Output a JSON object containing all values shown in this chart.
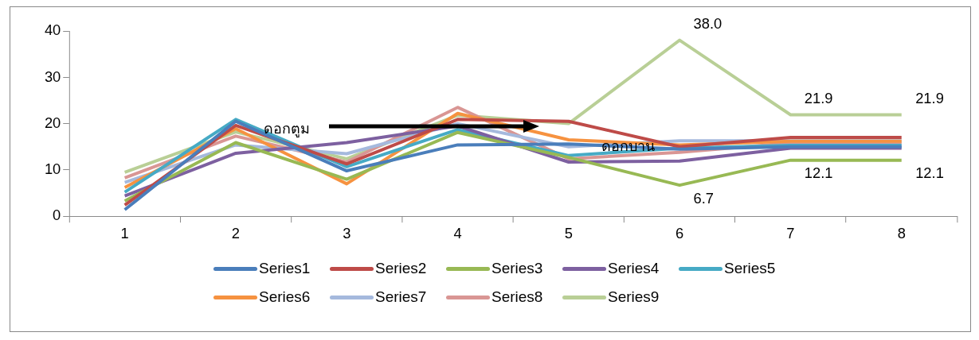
{
  "chart_data": {
    "type": "line",
    "categories": [
      "1",
      "2",
      "3",
      "4",
      "5",
      "6",
      "7",
      "8"
    ],
    "ylim": [
      0,
      40
    ],
    "yticks": [
      0,
      10,
      20,
      30,
      40
    ],
    "grid": false,
    "legend": "bottom",
    "marker": "none",
    "line_style": "solid",
    "annotations": [
      "ดอกตูม",
      "ดอกบาน"
    ],
    "series": [
      {
        "name": "Series1",
        "color": "#4a7ebb",
        "values": [
          1.4,
          20.5,
          9.8,
          15.4,
          15.6,
          14.5,
          15,
          15
        ]
      },
      {
        "name": "Series2",
        "color": "#be4b48",
        "values": [
          2.4,
          19.6,
          11.3,
          20.9,
          20.5,
          15,
          17,
          17
        ]
      },
      {
        "name": "Series3",
        "color": "#98b954",
        "values": [
          3.3,
          15.9,
          8,
          18.1,
          12.7,
          6.7,
          12.1,
          12.1
        ],
        "value_labels": [
          null,
          null,
          null,
          null,
          null,
          "6.7",
          "12.1",
          "12.1"
        ]
      },
      {
        "name": "Series4",
        "color": "#7d60a0",
        "values": [
          4.4,
          13.6,
          15.9,
          19.5,
          11.7,
          11.9,
          14.7,
          14.7
        ]
      },
      {
        "name": "Series5",
        "color": "#46aac5",
        "values": [
          5.2,
          20.9,
          10.7,
          18.7,
          13.1,
          14.7,
          15.3,
          15.3
        ]
      },
      {
        "name": "Series6",
        "color": "#f69240",
        "values": [
          6.2,
          18.9,
          7,
          22.2,
          16.5,
          15.4,
          16.2,
          16.2
        ]
      },
      {
        "name": "Series7",
        "color": "#a5b9dd",
        "values": [
          7.3,
          15.4,
          13.5,
          20,
          15,
          16.3,
          16.3,
          16.3
        ]
      },
      {
        "name": "Series8",
        "color": "#d99694",
        "values": [
          8.3,
          17.3,
          11.7,
          23.5,
          12.4,
          13.8,
          15.8,
          15.8
        ]
      },
      {
        "name": "Series9",
        "color": "#b9cf96",
        "values": [
          9.5,
          18.2,
          12.4,
          21.8,
          20,
          38.0,
          21.9,
          21.9
        ],
        "value_labels": [
          null,
          null,
          null,
          null,
          null,
          "38.0",
          "21.9",
          "21.9"
        ]
      }
    ]
  }
}
